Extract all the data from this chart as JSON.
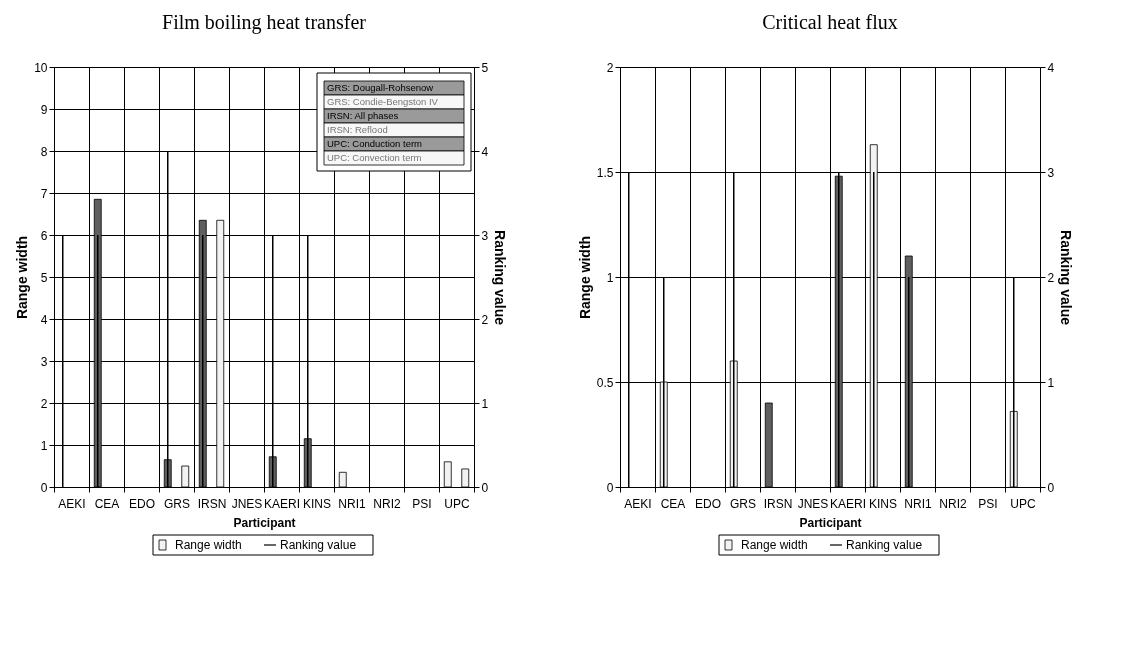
{
  "chart_data": [
    {
      "type": "bar",
      "title": "Film boiling heat transfer",
      "xlabel": "Participant",
      "ylabel": "Range width",
      "y2label": "Ranking value",
      "categories": [
        "AEKI",
        "CEA",
        "EDO",
        "GRS",
        "IRSN",
        "JNES",
        "KAERI",
        "KINS",
        "NRI1",
        "NRI2",
        "PSI",
        "UPC"
      ],
      "series": [
        {
          "name": "Range width",
          "color": "#f2f2f2",
          "values": [
            null,
            6.85,
            null,
            0.65,
            6.35,
            null,
            0.72,
            1.15,
            0.35,
            null,
            null,
            0.6
          ],
          "colors": [
            null,
            "#5f5f5f",
            null,
            "#5f5f5f",
            "#5f5f5f",
            null,
            "#5f5f5f",
            "#5f5f5f",
            "#f2f2f2",
            null,
            null,
            "#f2f2f2"
          ]
        },
        {
          "values": [
            null,
            null,
            null,
            0.5,
            6.35,
            null,
            null,
            null,
            null,
            null,
            null,
            0.43
          ],
          "colors": [
            null,
            null,
            null,
            "#f2f2f2",
            "#f2f2f2",
            null,
            null,
            null,
            null,
            null,
            null,
            "#f2f2f2"
          ]
        },
        {
          "name": "Ranking value",
          "type": "bar",
          "axis": "y2",
          "color": "#000000",
          "values": [
            3,
            3,
            null,
            4,
            3,
            null,
            3,
            3,
            0,
            null,
            null,
            0
          ]
        }
      ],
      "ylim": [
        0,
        10
      ],
      "yticks": [
        0,
        1,
        2,
        3,
        4,
        5,
        6,
        7,
        8,
        9,
        10
      ],
      "y2lim": [
        0,
        5
      ],
      "y2ticks": [
        0,
        1,
        2,
        3,
        4,
        5
      ],
      "grid": true,
      "legend": "bottom",
      "annotations": [
        "GRS: Dougall-Rohsenow",
        "GRS: Condie-Bengston IV",
        "IRSN: All phases",
        "IRSN: Reflood",
        "UPC: Conduction term",
        "UPC: Convection term"
      ]
    },
    {
      "type": "bar",
      "title": "Critical heat flux",
      "xlabel": "Participant",
      "ylabel": "Range width",
      "y2label": "Ranking value",
      "categories": [
        "AEKI",
        "CEA",
        "EDO",
        "GRS",
        "IRSN",
        "JNES",
        "KAERI",
        "KINS",
        "NRI1",
        "NRI2",
        "PSI",
        "UPC"
      ],
      "series": [
        {
          "name": "Range width",
          "color": "#f2f2f2",
          "values": [
            null,
            0.5,
            null,
            0.6,
            0.4,
            null,
            1.48,
            1.63,
            1.1,
            null,
            null,
            0.36
          ],
          "colors": [
            null,
            "#f2f2f2",
            null,
            "#f2f2f2",
            "#5f5f5f",
            null,
            "#5f5f5f",
            "#f2f2f2",
            "#5f5f5f",
            null,
            null,
            "#f2f2f2"
          ]
        },
        {
          "name": "Ranking value",
          "type": "bar",
          "axis": "y2",
          "color": "#000000",
          "values": [
            3,
            2,
            null,
            3,
            null,
            null,
            3,
            3,
            2,
            null,
            null,
            2
          ]
        }
      ],
      "ylim": [
        0,
        2
      ],
      "yticks": [
        0,
        0.5,
        1,
        1.5,
        2
      ],
      "y2lim": [
        0,
        4
      ],
      "y2ticks": [
        0,
        1,
        2,
        3,
        4
      ],
      "grid": true,
      "legend": "bottom"
    }
  ]
}
